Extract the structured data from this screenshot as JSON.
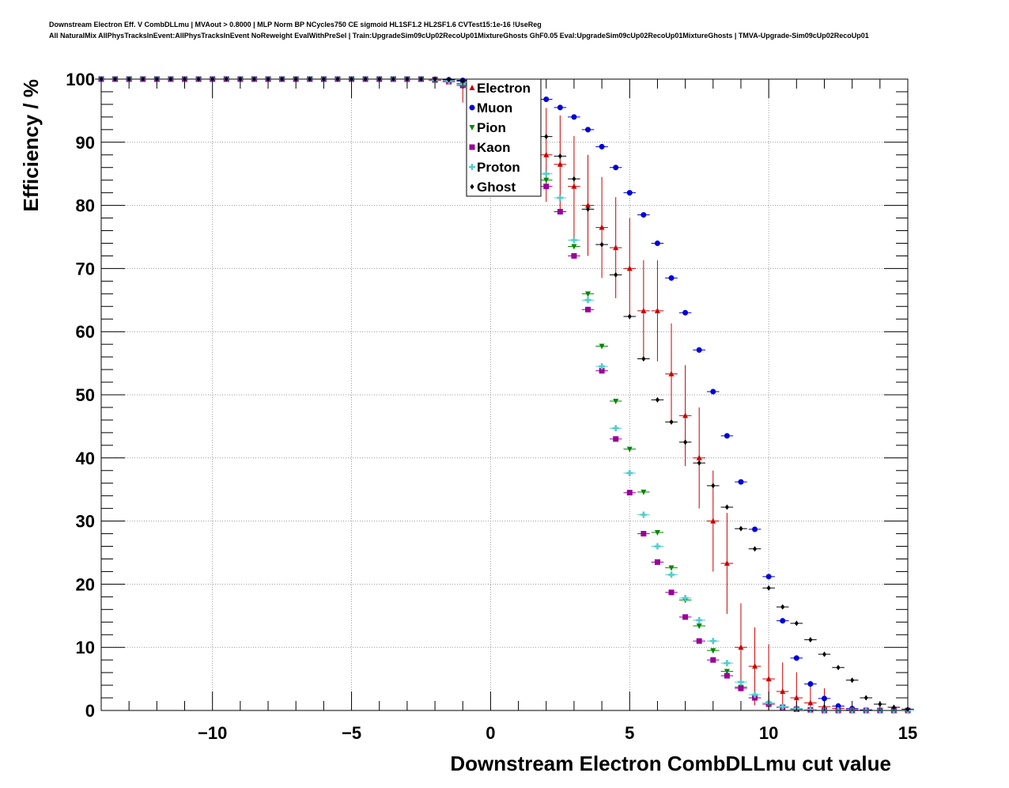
{
  "header": {
    "line1": "Downstream Electron Eff. V CombDLLmu | MVAout > 0.8000 | MLP Norm BP NCycles750 CE sigmoid HL1SF1.2 HL2SF1.6 CVTest15:1e-16 !UseReg",
    "line2": "All NaturalMix AllPhysTracksInEvent:AllPhysTracksInEvent NoReweight EvalWithPreSel | Train:UpgradeSim09cUp02RecoUp01MixtureGhosts GhF0.05 Eval:UpgradeSim09cUp02RecoUp01MixtureGhosts | TMVA-Upgrade-Sim09cUp02RecoUp01"
  },
  "chart_data": {
    "type": "scatter",
    "xlabel": "Downstream Electron CombDLLmu cut value",
    "ylabel": "Efficiency / %",
    "xlim": [
      -14,
      15
    ],
    "ylim": [
      0,
      100
    ],
    "x_ticks": [
      -10,
      -5,
      0,
      5,
      10,
      15
    ],
    "x_tick_labels": [
      "−10",
      "−5",
      "0",
      "5",
      "10",
      "15"
    ],
    "y_ticks": [
      0,
      10,
      20,
      30,
      40,
      50,
      60,
      70,
      80,
      90,
      100
    ],
    "grid": true,
    "legend_position": "top-center",
    "x": [
      -14,
      -13.5,
      -13,
      -12.5,
      -12,
      -11.5,
      -11,
      -10.5,
      -10,
      -9.5,
      -9,
      -8.5,
      -8,
      -7.5,
      -7,
      -6.5,
      -6,
      -5.5,
      -5,
      -4.5,
      -4,
      -3.5,
      -3,
      -2.5,
      -2,
      -1.5,
      -1,
      -0.5,
      0,
      0.5,
      1,
      1.5,
      2,
      2.5,
      3,
      3.5,
      4,
      4.5,
      5,
      5.5,
      6,
      6.5,
      7,
      7.5,
      8,
      8.5,
      9,
      9.5,
      10,
      10.5,
      11,
      11.5,
      12,
      12.5,
      13,
      13.5,
      14,
      14.5,
      15
    ],
    "series": [
      {
        "name": "Electron",
        "color": "#cc0000",
        "marker": "triangle-up",
        "errors": true,
        "values": [
          100,
          100,
          100,
          100,
          100,
          100,
          100,
          100,
          100,
          100,
          100,
          100,
          100,
          100,
          100,
          100,
          100,
          100,
          100,
          100,
          100,
          100,
          100,
          100,
          99.8,
          99.6,
          99.3,
          98.8,
          97.6,
          95.5,
          92.5,
          89.5,
          88,
          86.5,
          83,
          80,
          76.5,
          73.3,
          70,
          63.3,
          63.3,
          53.3,
          46.7,
          40,
          30,
          23.3,
          10,
          7,
          5,
          3,
          2,
          1.2,
          0.6,
          0.3,
          0.1,
          0,
          0,
          0,
          0
        ]
      },
      {
        "name": "Muon",
        "color": "#0000dd",
        "marker": "circle",
        "errors": false,
        "values": [
          100,
          100,
          100,
          100,
          100,
          100,
          100,
          100,
          100,
          100,
          100,
          100,
          100,
          100,
          100,
          100,
          100,
          100,
          100,
          100,
          100,
          100,
          100,
          100,
          100,
          99.9,
          99.8,
          99.6,
          99.4,
          99,
          98.5,
          97.8,
          96.8,
          95.5,
          94,
          92,
          89.3,
          86,
          82,
          78.5,
          74,
          68.5,
          63,
          57.1,
          50.5,
          43.5,
          36.2,
          28.7,
          21.2,
          14.2,
          8.3,
          4.2,
          1.9,
          0.7,
          0.3,
          0.1,
          0,
          0,
          0
        ]
      },
      {
        "name": "Pion",
        "color": "#008800",
        "marker": "triangle-down",
        "errors": false,
        "values": [
          100,
          100,
          100,
          100,
          100,
          100,
          100,
          100,
          100,
          100,
          100,
          100,
          100,
          100,
          100,
          100,
          100,
          100,
          100,
          100,
          100,
          100,
          100,
          100,
          100,
          99.7,
          99.2,
          98.2,
          96.8,
          94.5,
          91.5,
          88,
          84,
          79,
          73.5,
          66,
          57.7,
          49,
          41.4,
          34.6,
          28.2,
          22.6,
          17.5,
          13.4,
          9.5,
          6.2,
          3.7,
          2,
          1,
          0.5,
          0.2,
          0.1,
          0,
          0,
          0,
          0,
          0,
          0,
          0
        ]
      },
      {
        "name": "Kaon",
        "color": "#990099",
        "marker": "square",
        "errors": false,
        "values": [
          100,
          100,
          100,
          100,
          100,
          100,
          100,
          100,
          100,
          100,
          100,
          100,
          100,
          100,
          100,
          100,
          100,
          100,
          100,
          100,
          100,
          100,
          100,
          100,
          99.9,
          99.6,
          99,
          98,
          96.5,
          94,
          91,
          87.5,
          83,
          79,
          72,
          63.5,
          53.8,
          43,
          34.5,
          28,
          23.5,
          18.7,
          14.8,
          11,
          8,
          5.5,
          3.5,
          2,
          1,
          0.5,
          0.2,
          0.1,
          0,
          0,
          0,
          0,
          0,
          0,
          0
        ]
      },
      {
        "name": "Proton",
        "color": "#55cccc",
        "marker": "cross",
        "errors": false,
        "values": [
          100,
          100,
          100,
          100,
          100,
          100,
          100,
          100,
          100,
          100,
          100,
          100,
          100,
          100,
          100,
          100,
          100,
          100,
          100,
          100,
          100,
          100,
          100,
          100,
          99.9,
          99.7,
          99.2,
          98.3,
          97,
          94.8,
          92.1,
          89.3,
          85,
          81.2,
          74.5,
          65,
          54.5,
          44.7,
          37.6,
          31,
          26,
          21.5,
          17.8,
          14.3,
          11,
          7.5,
          4.5,
          2.5,
          1.2,
          0.6,
          0.3,
          0.1,
          0,
          0,
          0,
          0,
          0,
          0,
          0
        ]
      },
      {
        "name": "Ghost",
        "color": "#000000",
        "marker": "diamond",
        "errors": false,
        "values": [
          100,
          100,
          100,
          100,
          100,
          100,
          100,
          100,
          100,
          100,
          100,
          100,
          100,
          100,
          100,
          100,
          100,
          100,
          100,
          100,
          100,
          100,
          100,
          100,
          100,
          99.9,
          99.7,
          99.3,
          98.6,
          97.3,
          95.6,
          93.4,
          90.9,
          87.8,
          84.2,
          79.4,
          73.8,
          69,
          62.4,
          55.7,
          49.2,
          45.7,
          42.5,
          39.2,
          35.6,
          32.2,
          28.8,
          25.6,
          19.4,
          16.4,
          13.8,
          11.2,
          8.9,
          6.8,
          4.8,
          2,
          1,
          0.5,
          0.2
        ]
      }
    ]
  }
}
